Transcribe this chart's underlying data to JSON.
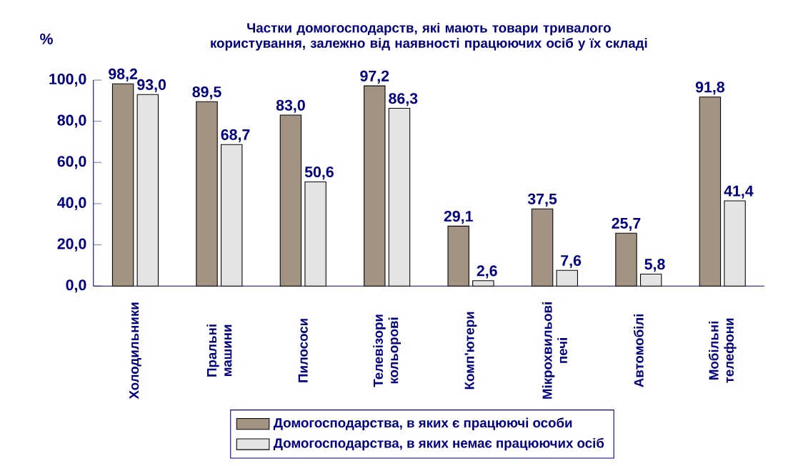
{
  "chart_data": {
    "type": "bar",
    "title": "Частки домогосподарств, які мають товари тривалого користування, залежно від наявності працюючих осіб у їх складі",
    "ylabel": "%",
    "categories": [
      "Холодильники",
      "Пральні машини",
      "Пилососи",
      "Телевізори кольорові",
      "Комп'ютери",
      "Мікрохвильові печі",
      "Автомобілі",
      "Мобільні телефони"
    ],
    "series": [
      {
        "name": "Домогосподарства, в яких є працюючі особи",
        "color": "#a39383",
        "values": [
          98.2,
          89.5,
          83.0,
          97.2,
          29.1,
          37.5,
          25.7,
          91.8
        ],
        "value_labels": [
          "98,2",
          "89,5",
          "83,0",
          "97,2",
          "29,1",
          "37,5",
          "25,7",
          "91,8"
        ]
      },
      {
        "name": "Домогосподарства, в яких немає працюючих осіб",
        "color": "#e4e4e4",
        "values": [
          93.0,
          68.7,
          50.6,
          86.3,
          2.6,
          7.6,
          5.8,
          41.4
        ],
        "value_labels": [
          "93,0",
          "68,7",
          "50,6",
          "86,3",
          "2,6",
          "7,6",
          "5,8",
          "41,4"
        ]
      }
    ],
    "ylim": [
      0,
      100
    ],
    "yticks": [
      {
        "value": 0,
        "label": "0,0"
      },
      {
        "value": 20,
        "label": "20,0"
      },
      {
        "value": 40,
        "label": "40,0"
      },
      {
        "value": 60,
        "label": "60,0"
      },
      {
        "value": 80,
        "label": "80,0"
      },
      {
        "value": 100,
        "label": "100,0"
      }
    ],
    "legend": "bottom"
  }
}
